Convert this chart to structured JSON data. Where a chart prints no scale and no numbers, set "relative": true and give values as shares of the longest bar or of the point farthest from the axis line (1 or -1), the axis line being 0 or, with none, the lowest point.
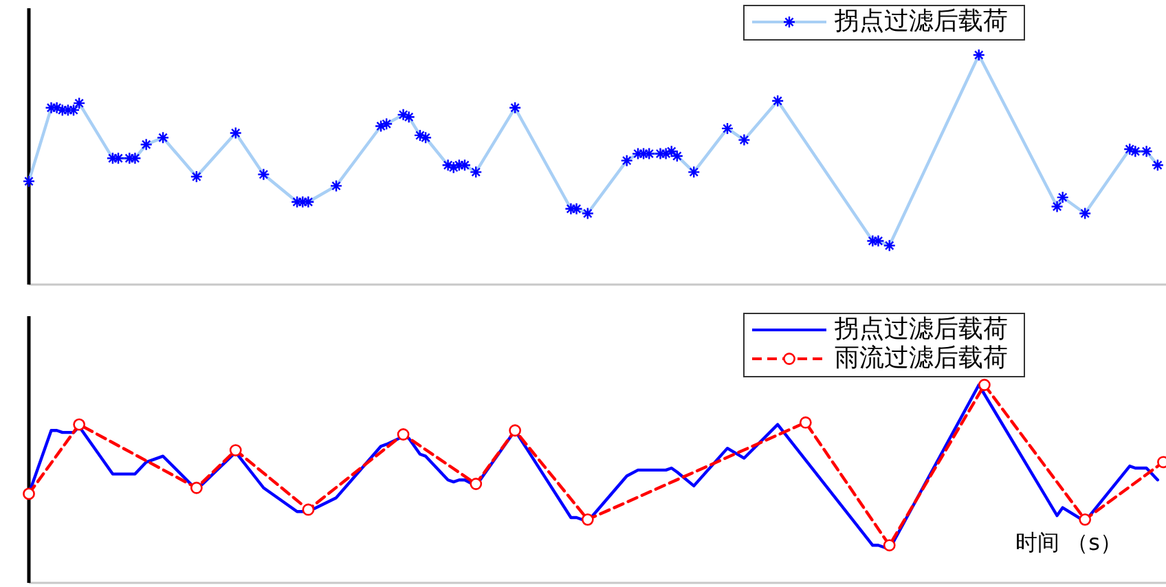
{
  "chart_data": [
    {
      "type": "line",
      "relative": true,
      "legend": "top right",
      "categories": [
        null,
        null,
        null,
        null,
        null,
        null,
        null,
        null,
        null,
        null,
        null,
        null,
        null,
        null,
        null,
        null,
        null,
        null,
        null,
        null,
        null,
        null,
        null,
        null,
        null,
        null,
        null,
        null,
        null,
        null,
        null,
        null,
        null,
        null,
        null,
        null,
        null,
        null,
        null,
        null,
        null,
        null,
        null,
        null,
        null,
        null,
        null,
        null,
        null,
        null,
        null,
        null,
        null,
        null,
        null,
        null,
        null,
        null,
        null,
        null,
        null,
        null,
        null,
        null,
        null,
        null,
        null,
        null,
        null,
        null,
        null,
        null,
        null,
        null,
        null,
        null,
        null,
        null,
        null,
        null,
        null,
        null,
        null,
        null,
        null,
        null,
        null,
        null,
        null,
        null,
        null,
        null,
        null,
        null,
        null,
        null,
        null,
        null,
        null,
        null,
        null,
        null,
        null,
        null,
        null,
        null,
        null,
        null,
        null,
        null,
        null,
        null,
        null,
        null,
        null,
        null,
        null,
        null,
        null,
        null,
        null,
        null,
        null,
        null,
        null,
        null,
        null,
        null,
        null,
        null,
        null,
        null,
        null,
        null,
        null,
        null,
        null,
        null,
        null,
        null,
        null,
        null,
        null,
        null,
        null,
        null,
        null,
        null,
        null,
        null,
        null,
        null,
        null,
        null,
        null,
        null,
        null,
        null,
        null,
        null,
        null,
        null,
        null,
        null,
        null,
        null,
        null,
        null,
        null,
        null,
        null,
        null,
        null,
        null,
        null,
        null,
        null,
        null,
        null,
        null,
        null,
        null,
        null,
        null,
        null,
        null,
        null,
        null,
        null,
        null,
        null,
        null,
        null,
        null,
        null,
        null,
        null,
        null,
        null,
        null,
        null,
        null,
        null,
        null
      ],
      "series": [
        {
          "name": "拐点过滤后载荷",
          "color": "#a8cff5",
          "marker": "cross",
          "line_style": "solid",
          "values": [
            0.45,
            null,
            null,
            null,
            0.77,
            0.77,
            0.76,
            0.76,
            0.76,
            0.79,
            null,
            null,
            null,
            null,
            null,
            0.55,
            0.55,
            null,
            0.55,
            0.55,
            null,
            0.61,
            null,
            null,
            0.64,
            null,
            null,
            null,
            null,
            null,
            0.47,
            null,
            null,
            null,
            null,
            null,
            null,
            0.66,
            null,
            null,
            null,
            null,
            0.48,
            null,
            null,
            null,
            null,
            null,
            0.36,
            0.36,
            0.36,
            null,
            null,
            null,
            null,
            0.43,
            null,
            null,
            null,
            null,
            null,
            null,
            null,
            0.69,
            0.7,
            null,
            null,
            0.74,
            0.73,
            null,
            0.65,
            0.64,
            null,
            null,
            null,
            0.52,
            0.51,
            0.52,
            0.52,
            null,
            0.49,
            null,
            null,
            null,
            null,
            null,
            null,
            0.77,
            null,
            null,
            null,
            null,
            null,
            null,
            null,
            null,
            null,
            0.33,
            0.33,
            null,
            0.31,
            null,
            null,
            null,
            null,
            null,
            null,
            0.54,
            null,
            0.57,
            0.57,
            0.57,
            null,
            0.57,
            0.57,
            0.58,
            0.56,
            null,
            null,
            0.49,
            null,
            null,
            null,
            null,
            null,
            0.68,
            null,
            null,
            0.63,
            null,
            null,
            null,
            null,
            null,
            0.8,
            null,
            null,
            null,
            null,
            null,
            null,
            null,
            null,
            null,
            null,
            null,
            null,
            null,
            null,
            null,
            null,
            0.19,
            0.19,
            null,
            0.17,
            null,
            null,
            null,
            null,
            null,
            null,
            null,
            null,
            null,
            null,
            null,
            null,
            null,
            null,
            null,
            1,
            null,
            null,
            null,
            null,
            null,
            null,
            null,
            null,
            null,
            null,
            null,
            null,
            null,
            0.34,
            0.38,
            null,
            null,
            null,
            0.31,
            null,
            null,
            null,
            null,
            null,
            null,
            null,
            0.59,
            0.58,
            null,
            0.58,
            null,
            0.52,
            null
          ]
        }
      ]
    },
    {
      "type": "line",
      "relative": true,
      "legend": "top right",
      "xlabel": "时间 （s）",
      "categories": [
        null,
        null,
        null,
        null,
        null,
        null,
        null,
        null,
        null,
        null,
        null,
        null,
        null,
        null,
        null,
        null,
        null,
        null,
        null,
        null,
        null,
        null,
        null,
        null,
        null,
        null,
        null,
        null,
        null,
        null,
        null,
        null,
        null,
        null,
        null,
        null,
        null,
        null,
        null,
        null,
        null,
        null,
        null,
        null,
        null,
        null,
        null,
        null,
        null,
        null,
        null,
        null,
        null,
        null,
        null,
        null,
        null,
        null,
        null,
        null,
        null,
        null,
        null,
        null,
        null,
        null,
        null,
        null,
        null,
        null,
        null,
        null,
        null,
        null,
        null,
        null,
        null,
        null,
        null,
        null,
        null,
        null,
        null,
        null,
        null,
        null,
        null,
        null,
        null,
        null,
        null,
        null,
        null,
        null,
        null,
        null,
        null,
        null,
        null,
        null,
        null,
        null,
        null,
        null,
        null,
        null,
        null,
        null,
        null,
        null,
        null,
        null,
        null,
        null,
        null,
        null,
        null,
        null,
        null,
        null,
        null,
        null,
        null,
        null,
        null,
        null,
        null,
        null,
        null,
        null,
        null,
        null,
        null,
        null,
        null,
        null,
        null,
        null,
        null,
        null,
        null,
        null,
        null,
        null,
        null,
        null,
        null,
        null,
        null,
        null,
        null,
        null,
        null,
        null,
        null,
        null,
        null,
        null,
        null,
        null,
        null,
        null,
        null,
        null,
        null,
        null,
        null,
        null,
        null,
        null,
        null,
        null,
        null,
        null,
        null,
        null,
        null,
        null,
        null,
        null,
        null,
        null,
        null,
        null,
        null,
        null,
        null,
        null,
        null,
        null,
        null,
        null,
        null,
        null,
        null,
        null,
        null,
        null,
        null,
        null,
        null,
        null,
        null,
        null
      ],
      "series": [
        {
          "name": "拐点过滤后载荷",
          "color": "#0000ff",
          "marker": "none",
          "line_style": "solid",
          "values": [
            0.45,
            null,
            null,
            null,
            0.77,
            0.77,
            0.76,
            0.76,
            0.76,
            0.79,
            null,
            null,
            null,
            null,
            null,
            0.55,
            0.55,
            null,
            0.55,
            0.55,
            null,
            0.61,
            null,
            null,
            0.64,
            null,
            null,
            null,
            null,
            null,
            0.47,
            null,
            null,
            null,
            null,
            null,
            null,
            0.66,
            null,
            null,
            null,
            null,
            0.48,
            null,
            null,
            null,
            null,
            null,
            0.36,
            0.36,
            0.36,
            null,
            null,
            null,
            null,
            0.43,
            null,
            null,
            null,
            null,
            null,
            null,
            null,
            0.69,
            0.7,
            null,
            null,
            0.74,
            0.73,
            null,
            0.65,
            0.64,
            null,
            null,
            null,
            0.52,
            0.51,
            0.52,
            0.52,
            null,
            0.49,
            null,
            null,
            null,
            null,
            null,
            null,
            0.77,
            null,
            null,
            null,
            null,
            null,
            null,
            null,
            null,
            null,
            0.33,
            0.33,
            null,
            0.31,
            null,
            null,
            null,
            null,
            null,
            null,
            0.54,
            null,
            0.57,
            0.57,
            0.57,
            null,
            0.57,
            0.57,
            0.58,
            0.56,
            null,
            null,
            0.49,
            null,
            null,
            null,
            null,
            null,
            0.68,
            null,
            null,
            0.63,
            null,
            null,
            null,
            null,
            null,
            0.8,
            null,
            null,
            null,
            null,
            null,
            null,
            null,
            null,
            null,
            null,
            null,
            null,
            null,
            null,
            null,
            null,
            0.19,
            0.19,
            null,
            0.17,
            null,
            null,
            null,
            null,
            null,
            null,
            null,
            null,
            null,
            null,
            null,
            null,
            null,
            null,
            null,
            1,
            null,
            null,
            null,
            null,
            null,
            null,
            null,
            null,
            null,
            null,
            null,
            null,
            null,
            0.34,
            0.38,
            null,
            null,
            null,
            0.31,
            null,
            null,
            null,
            null,
            null,
            null,
            null,
            0.59,
            0.58,
            null,
            0.58,
            null,
            0.52,
            null
          ]
        },
        {
          "name": "雨流过滤后载荷",
          "color": "#ff0000",
          "marker": "circle",
          "line_style": "dashed",
          "values": [
            0.45,
            null,
            null,
            null,
            null,
            null,
            null,
            null,
            null,
            0.8,
            null,
            null,
            null,
            null,
            null,
            null,
            null,
            null,
            null,
            null,
            null,
            null,
            null,
            null,
            null,
            null,
            null,
            null,
            null,
            null,
            0.48,
            null,
            null,
            null,
            null,
            null,
            null,
            0.67,
            null,
            null,
            null,
            null,
            null,
            null,
            null,
            null,
            null,
            null,
            null,
            null,
            0.37,
            null,
            null,
            null,
            null,
            null,
            null,
            null,
            null,
            null,
            null,
            null,
            null,
            null,
            null,
            null,
            null,
            0.75,
            null,
            null,
            null,
            null,
            null,
            null,
            null,
            null,
            null,
            null,
            null,
            null,
            0.5,
            null,
            null,
            null,
            null,
            null,
            null,
            0.77,
            null,
            null,
            null,
            null,
            null,
            null,
            null,
            null,
            null,
            null,
            null,
            null,
            0.32,
            null,
            null,
            null,
            null,
            null,
            null,
            null,
            null,
            null,
            null,
            null,
            null,
            null,
            null,
            null,
            null,
            null,
            null,
            null,
            null,
            null,
            null,
            null,
            null,
            null,
            null,
            null,
            null,
            null,
            null,
            null,
            null,
            null,
            null,
            null,
            null,
            null,
            null,
            0.81,
            null,
            null,
            null,
            null,
            null,
            null,
            null,
            null,
            null,
            null,
            null,
            null,
            null,
            null,
            0.19,
            null,
            null,
            null,
            null,
            null,
            null,
            null,
            null,
            null,
            null,
            null,
            null,
            null,
            null,
            null,
            null,
            1,
            null,
            null,
            null,
            null,
            null,
            null,
            null,
            null,
            null,
            null,
            null,
            null,
            null,
            null,
            null,
            null,
            null,
            0.32,
            null,
            null,
            null,
            null,
            null,
            null,
            null,
            null,
            null,
            null,
            null,
            null,
            null,
            0.61
          ]
        }
      ]
    }
  ]
}
